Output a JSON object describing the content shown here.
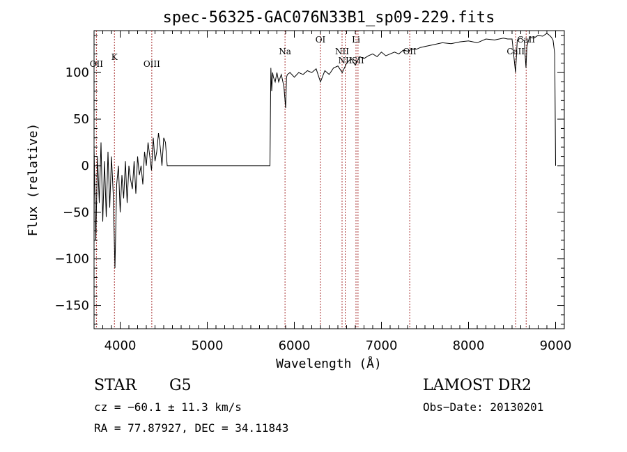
{
  "chart_data": {
    "type": "line",
    "title": "spec-56325-GAC076N33B1_sp09-229.fits",
    "xlabel": "Wavelength (Å)",
    "ylabel": "Flux (relative)",
    "xlim": [
      3700,
      9100
    ],
    "ylim": [
      -175,
      145
    ],
    "x_ticks": [
      4000,
      5000,
      6000,
      7000,
      8000,
      9000
    ],
    "x_tick_labels": [
      "4000",
      "5000",
      "6000",
      "7000",
      "8000",
      "9000"
    ],
    "y_ticks": [
      -150,
      -100,
      -50,
      0,
      50,
      100
    ],
    "y_tick_labels": [
      "−150",
      "−100",
      "−50",
      "0",
      "50",
      "100"
    ],
    "grid": false,
    "series": [
      {
        "x": [
          3700,
          3720,
          3740,
          3760,
          3780,
          3800,
          3820,
          3840,
          3860,
          3880,
          3900,
          3920,
          3940,
          3960,
          3980,
          4000,
          4020,
          4040,
          4060,
          4080,
          4100,
          4120,
          4140,
          4160,
          4180,
          4200,
          4220,
          4240,
          4260,
          4280,
          4300,
          4320,
          4340,
          4360,
          4380,
          4400,
          4420,
          4440,
          4460,
          4480,
          4500,
          4520,
          4540,
          4560,
          5000,
          5500,
          5720,
          5730,
          5740,
          5750,
          5760,
          5780,
          5800,
          5820,
          5850,
          5880,
          5900,
          5910,
          5920,
          5950,
          6000,
          6050,
          6100,
          6150,
          6200,
          6250,
          6300,
          6350,
          6400,
          6450,
          6500,
          6550,
          6600,
          6650,
          6700,
          6750,
          6800,
          6850,
          6900,
          6950,
          7000,
          7050,
          7100,
          7150,
          7200,
          7250,
          7300,
          7350,
          7400,
          7450,
          7500,
          7600,
          7700,
          7800,
          7900,
          8000,
          8100,
          8200,
          8300,
          8400,
          8450,
          8500,
          8540,
          8550,
          8560,
          8600,
          8640,
          8660,
          8670,
          8700,
          8750,
          8800,
          8850,
          8900,
          8930,
          8950,
          8970,
          8990,
          9000
        ],
        "y": [
          20,
          -80,
          10,
          -40,
          25,
          -60,
          5,
          -55,
          15,
          -45,
          10,
          -30,
          -110,
          -20,
          0,
          -50,
          -10,
          -35,
          5,
          -40,
          0,
          -15,
          -25,
          5,
          -30,
          10,
          -10,
          0,
          -20,
          15,
          0,
          25,
          10,
          -5,
          30,
          5,
          15,
          35,
          20,
          0,
          30,
          25,
          0,
          0,
          0,
          0,
          0,
          105,
          80,
          100,
          95,
          90,
          100,
          90,
          98,
          85,
          62,
          95,
          98,
          100,
          95,
          100,
          98,
          102,
          100,
          104,
          90,
          102,
          98,
          105,
          107,
          100,
          110,
          115,
          108,
          117,
          115,
          118,
          120,
          117,
          122,
          118,
          120,
          122,
          120,
          124,
          123,
          125,
          125,
          127,
          128,
          130,
          132,
          131,
          133,
          134,
          132,
          136,
          135,
          137,
          136,
          136,
          100,
          118,
          135,
          137,
          134,
          105,
          128,
          138,
          137,
          140,
          139,
          142,
          140,
          138,
          135,
          120,
          0
        ]
      }
    ],
    "lines": [
      {
        "label": "K",
        "x": 3934
      },
      {
        "label": "OII",
        "x": 3727
      },
      {
        "label": "OIII",
        "x": 4363
      },
      {
        "label": "Na",
        "x": 5893
      },
      {
        "label": "OI",
        "x": 6300
      },
      {
        "label": "NII",
        "x": 6548
      },
      {
        "label": "NII",
        "x": 6584
      },
      {
        "label": "Li",
        "x": 6708
      },
      {
        "label": "SII",
        "x": 6731
      },
      {
        "label": "OII",
        "x": 7325
      },
      {
        "label": "CaII",
        "x": 8542
      },
      {
        "label": "CaII",
        "x": 8662
      }
    ]
  },
  "info": {
    "class": "STAR",
    "subclass": "G5",
    "survey": "LAMOST DR2",
    "cz": "cz = −60.1 ± 11.3 km/s",
    "obs_date": "Obs−Date: 20130201",
    "coords": "RA =  77.87927, DEC =  34.11843"
  }
}
